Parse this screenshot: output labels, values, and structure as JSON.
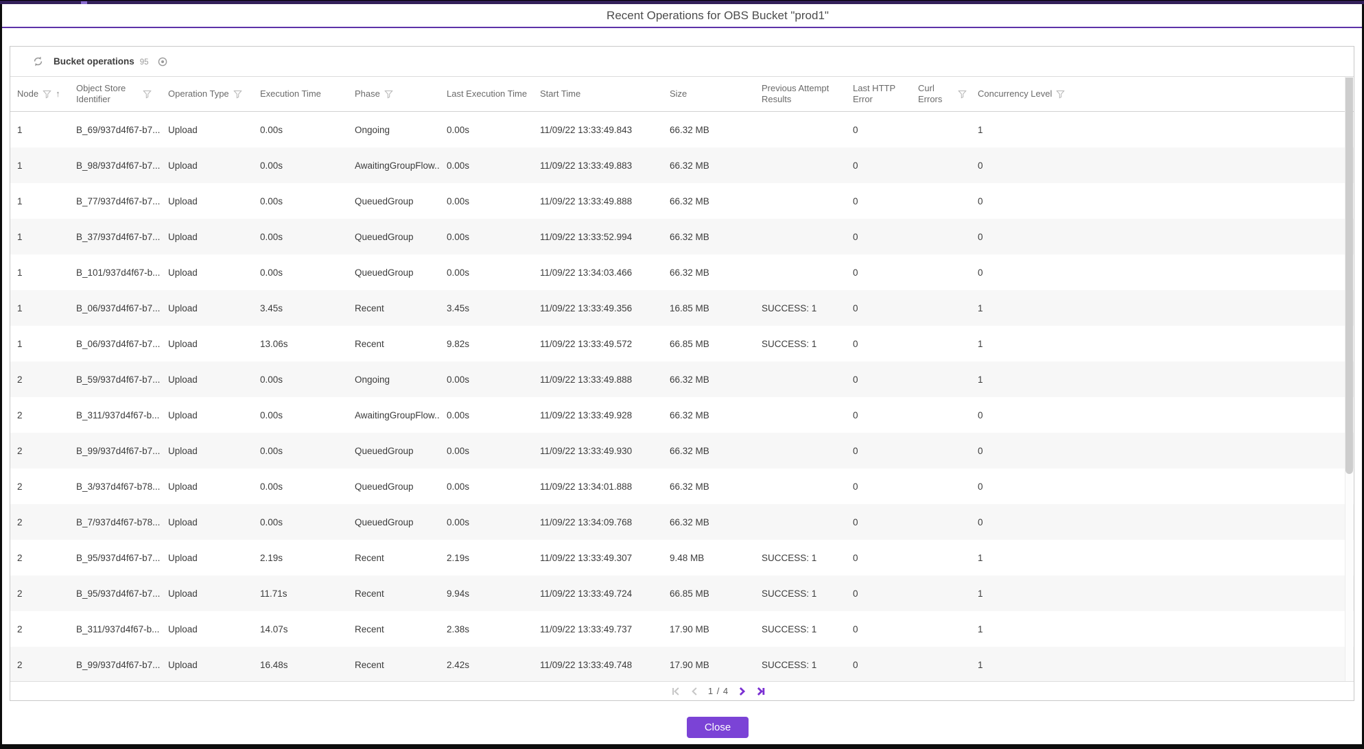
{
  "window": {
    "title": "Recent Operations for OBS Bucket \"prod1\""
  },
  "panel": {
    "title": "Bucket operations",
    "count": "95"
  },
  "table": {
    "columns": [
      {
        "key": "node",
        "label": "Node",
        "filter": true,
        "sort": "asc"
      },
      {
        "key": "object-store-identifier",
        "label": "Object Store Identifier",
        "filter": true,
        "filter_pos": "right"
      },
      {
        "key": "operation-type",
        "label": "Operation Type",
        "filter": true
      },
      {
        "key": "execution-time",
        "label": "Execution Time",
        "filter": false
      },
      {
        "key": "phase",
        "label": "Phase",
        "filter": true
      },
      {
        "key": "last-execution-time",
        "label": "Last Execution Time",
        "filter": false
      },
      {
        "key": "start-time",
        "label": "Start Time",
        "filter": false
      },
      {
        "key": "size",
        "label": "Size",
        "filter": false
      },
      {
        "key": "previous-attempt-results",
        "label": "Previous Attempt Results",
        "filter": false
      },
      {
        "key": "last-http-error",
        "label": "Last HTTP Error",
        "filter": false
      },
      {
        "key": "curl-errors",
        "label": "Curl Errors",
        "filter": true
      },
      {
        "key": "concurrency-level",
        "label": "Concurrency Level",
        "filter": true
      }
    ],
    "rows": [
      [
        "1",
        "B_69/937d4f67-b7...",
        "Upload",
        "0.00s",
        "Ongoing",
        "0.00s",
        "11/09/22 13:33:49.843",
        "66.32 MB",
        "",
        "0",
        "",
        "1"
      ],
      [
        "1",
        "B_98/937d4f67-b7...",
        "Upload",
        "0.00s",
        "AwaitingGroupFlow...",
        "0.00s",
        "11/09/22 13:33:49.883",
        "66.32 MB",
        "",
        "0",
        "",
        "0"
      ],
      [
        "1",
        "B_77/937d4f67-b7...",
        "Upload",
        "0.00s",
        "QueuedGroup",
        "0.00s",
        "11/09/22 13:33:49.888",
        "66.32 MB",
        "",
        "0",
        "",
        "0"
      ],
      [
        "1",
        "B_37/937d4f67-b7...",
        "Upload",
        "0.00s",
        "QueuedGroup",
        "0.00s",
        "11/09/22 13:33:52.994",
        "66.32 MB",
        "",
        "0",
        "",
        "0"
      ],
      [
        "1",
        "B_101/937d4f67-b...",
        "Upload",
        "0.00s",
        "QueuedGroup",
        "0.00s",
        "11/09/22 13:34:03.466",
        "66.32 MB",
        "",
        "0",
        "",
        "0"
      ],
      [
        "1",
        "B_06/937d4f67-b7...",
        "Upload",
        "3.45s",
        "Recent",
        "3.45s",
        "11/09/22 13:33:49.356",
        "16.85 MB",
        "SUCCESS: 1",
        "0",
        "",
        "1"
      ],
      [
        "1",
        "B_06/937d4f67-b7...",
        "Upload",
        "13.06s",
        "Recent",
        "9.82s",
        "11/09/22 13:33:49.572",
        "66.85 MB",
        "SUCCESS: 1",
        "0",
        "",
        "1"
      ],
      [
        "2",
        "B_59/937d4f67-b7...",
        "Upload",
        "0.00s",
        "Ongoing",
        "0.00s",
        "11/09/22 13:33:49.888",
        "66.32 MB",
        "",
        "0",
        "",
        "1"
      ],
      [
        "2",
        "B_311/937d4f67-b...",
        "Upload",
        "0.00s",
        "AwaitingGroupFlow...",
        "0.00s",
        "11/09/22 13:33:49.928",
        "66.32 MB",
        "",
        "0",
        "",
        "0"
      ],
      [
        "2",
        "B_99/937d4f67-b7...",
        "Upload",
        "0.00s",
        "QueuedGroup",
        "0.00s",
        "11/09/22 13:33:49.930",
        "66.32 MB",
        "",
        "0",
        "",
        "0"
      ],
      [
        "2",
        "B_3/937d4f67-b78...",
        "Upload",
        "0.00s",
        "QueuedGroup",
        "0.00s",
        "11/09/22 13:34:01.888",
        "66.32 MB",
        "",
        "0",
        "",
        "0"
      ],
      [
        "2",
        "B_7/937d4f67-b78...",
        "Upload",
        "0.00s",
        "QueuedGroup",
        "0.00s",
        "11/09/22 13:34:09.768",
        "66.32 MB",
        "",
        "0",
        "",
        "0"
      ],
      [
        "2",
        "B_95/937d4f67-b7...",
        "Upload",
        "2.19s",
        "Recent",
        "2.19s",
        "11/09/22 13:33:49.307",
        "9.48 MB",
        "SUCCESS: 1",
        "0",
        "",
        "1"
      ],
      [
        "2",
        "B_95/937d4f67-b7...",
        "Upload",
        "11.71s",
        "Recent",
        "9.94s",
        "11/09/22 13:33:49.724",
        "66.85 MB",
        "SUCCESS: 1",
        "0",
        "",
        "1"
      ],
      [
        "2",
        "B_311/937d4f67-b...",
        "Upload",
        "14.07s",
        "Recent",
        "2.38s",
        "11/09/22 13:33:49.737",
        "17.90 MB",
        "SUCCESS: 1",
        "0",
        "",
        "1"
      ],
      [
        "2",
        "B_99/937d4f67-b7...",
        "Upload",
        "16.48s",
        "Recent",
        "2.42s",
        "11/09/22 13:33:49.748",
        "17.90 MB",
        "SUCCESS: 1",
        "0",
        "",
        "1"
      ]
    ]
  },
  "pagination": {
    "current_page": "1",
    "total_pages": "4",
    "label": "1 / 4"
  },
  "footer": {
    "close_label": "Close"
  },
  "colors": {
    "accent_purple": "#7b43d6",
    "title_rule_purple": "#5d32a8",
    "top_bar_purple": "#33205a",
    "row_stripe": "#f7f7f7",
    "panel_border": "#c8c8c8",
    "pager_active": "#7a2fd2",
    "pager_disabled": "#c6c6c6"
  }
}
